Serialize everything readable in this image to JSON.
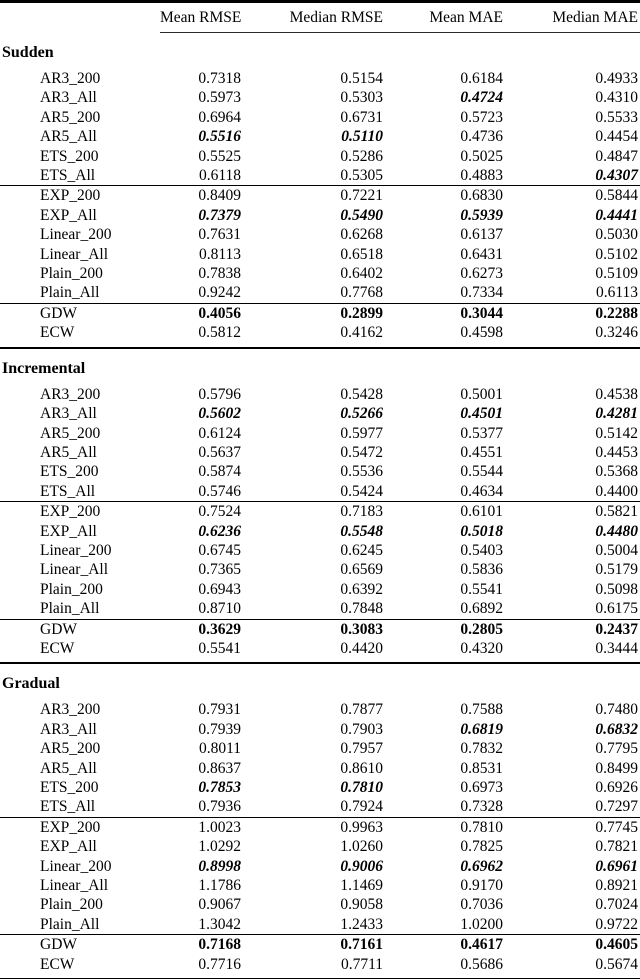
{
  "table": {
    "columns": [
      "Mean RMSE",
      "Median RMSE",
      "Mean MAE",
      "Median MAE"
    ],
    "emphasis_legend": {
      "b": "bold",
      "bi": "bold-italic",
      "": "normal"
    },
    "rule_color": "#000000",
    "sections": [
      {
        "title": "Sudden",
        "rows": [
          {
            "label": "AR3_200",
            "values": [
              "0.7318",
              "0.5154",
              "0.6184",
              "0.4933"
            ],
            "styles": [
              "",
              "",
              "",
              ""
            ]
          },
          {
            "label": "AR3_All",
            "values": [
              "0.5973",
              "0.5303",
              "0.4724",
              "0.4310"
            ],
            "styles": [
              "",
              "",
              "bi",
              ""
            ]
          },
          {
            "label": "AR5_200",
            "values": [
              "0.6964",
              "0.6731",
              "0.5723",
              "0.5533"
            ],
            "styles": [
              "",
              "",
              "",
              ""
            ]
          },
          {
            "label": "AR5_All",
            "values": [
              "0.5516",
              "0.5110",
              "0.4736",
              "0.4454"
            ],
            "styles": [
              "bi",
              "bi",
              "",
              ""
            ]
          },
          {
            "label": "ETS_200",
            "values": [
              "0.5525",
              "0.5286",
              "0.5025",
              "0.4847"
            ],
            "styles": [
              "",
              "",
              "",
              ""
            ]
          },
          {
            "label": "ETS_All",
            "values": [
              "0.6118",
              "0.5305",
              "0.4883",
              "0.4307"
            ],
            "styles": [
              "",
              "",
              "",
              "bi"
            ]
          },
          {
            "label": "EXP_200",
            "values": [
              "0.8409",
              "0.7221",
              "0.6830",
              "0.5844"
            ],
            "styles": [
              "",
              "",
              "",
              ""
            ]
          },
          {
            "label": "EXP_All",
            "values": [
              "0.7379",
              "0.5490",
              "0.5939",
              "0.4441"
            ],
            "styles": [
              "bi",
              "bi",
              "bi",
              "bi"
            ]
          },
          {
            "label": "Linear_200",
            "values": [
              "0.7631",
              "0.6268",
              "0.6137",
              "0.5030"
            ],
            "styles": [
              "",
              "",
              "",
              ""
            ]
          },
          {
            "label": "Linear_All",
            "values": [
              "0.8113",
              "0.6518",
              "0.6431",
              "0.5102"
            ],
            "styles": [
              "",
              "",
              "",
              ""
            ]
          },
          {
            "label": "Plain_200",
            "values": [
              "0.7838",
              "0.6402",
              "0.6273",
              "0.5109"
            ],
            "styles": [
              "",
              "",
              "",
              ""
            ]
          },
          {
            "label": "Plain_All",
            "values": [
              "0.9242",
              "0.7768",
              "0.7334",
              "0.6113"
            ],
            "styles": [
              "",
              "",
              "",
              ""
            ]
          },
          {
            "label": "GDW",
            "values": [
              "0.4056",
              "0.2899",
              "0.3044",
              "0.2288"
            ],
            "styles": [
              "b",
              "b",
              "b",
              "b"
            ]
          },
          {
            "label": "ECW",
            "values": [
              "0.5812",
              "0.4162",
              "0.4598",
              "0.3246"
            ],
            "styles": [
              "",
              "",
              "",
              ""
            ]
          }
        ]
      },
      {
        "title": "Incremental",
        "rows": [
          {
            "label": "AR3_200",
            "values": [
              "0.5796",
              "0.5428",
              "0.5001",
              "0.4538"
            ],
            "styles": [
              "",
              "",
              "",
              ""
            ]
          },
          {
            "label": "AR3_All",
            "values": [
              "0.5602",
              "0.5266",
              "0.4501",
              "0.4281"
            ],
            "styles": [
              "bi",
              "bi",
              "bi",
              "bi"
            ]
          },
          {
            "label": "AR5_200",
            "values": [
              "0.6124",
              "0.5977",
              "0.5377",
              "0.5142"
            ],
            "styles": [
              "",
              "",
              "",
              ""
            ]
          },
          {
            "label": "AR5_All",
            "values": [
              "0.5637",
              "0.5472",
              "0.4551",
              "0.4453"
            ],
            "styles": [
              "",
              "",
              "",
              ""
            ]
          },
          {
            "label": "ETS_200",
            "values": [
              "0.5874",
              "0.5536",
              "0.5544",
              "0.5368"
            ],
            "styles": [
              "",
              "",
              "",
              ""
            ]
          },
          {
            "label": "ETS_All",
            "values": [
              "0.5746",
              "0.5424",
              "0.4634",
              "0.4400"
            ],
            "styles": [
              "",
              "",
              "",
              ""
            ]
          },
          {
            "label": "EXP_200",
            "values": [
              "0.7524",
              "0.7183",
              "0.6101",
              "0.5821"
            ],
            "styles": [
              "",
              "",
              "",
              ""
            ]
          },
          {
            "label": "EXP_All",
            "values": [
              "0.6236",
              "0.5548",
              "0.5018",
              "0.4480"
            ],
            "styles": [
              "bi",
              "bi",
              "bi",
              "bi"
            ]
          },
          {
            "label": "Linear_200",
            "values": [
              "0.6745",
              "0.6245",
              "0.5403",
              "0.5004"
            ],
            "styles": [
              "",
              "",
              "",
              ""
            ]
          },
          {
            "label": "Linear_All",
            "values": [
              "0.7365",
              "0.6569",
              "0.5836",
              "0.5179"
            ],
            "styles": [
              "",
              "",
              "",
              ""
            ]
          },
          {
            "label": "Plain_200",
            "values": [
              "0.6943",
              "0.6392",
              "0.5541",
              "0.5098"
            ],
            "styles": [
              "",
              "",
              "",
              ""
            ]
          },
          {
            "label": "Plain_All",
            "values": [
              "0.8710",
              "0.7848",
              "0.6892",
              "0.6175"
            ],
            "styles": [
              "",
              "",
              "",
              ""
            ]
          },
          {
            "label": "GDW",
            "values": [
              "0.3629",
              "0.3083",
              "0.2805",
              "0.2437"
            ],
            "styles": [
              "b",
              "b",
              "b",
              "b"
            ]
          },
          {
            "label": "ECW",
            "values": [
              "0.5541",
              "0.4420",
              "0.4320",
              "0.3444"
            ],
            "styles": [
              "",
              "",
              "",
              ""
            ]
          }
        ]
      },
      {
        "title": "Gradual",
        "rows": [
          {
            "label": "AR3_200",
            "values": [
              "0.7931",
              "0.7877",
              "0.7588",
              "0.7480"
            ],
            "styles": [
              "",
              "",
              "",
              ""
            ]
          },
          {
            "label": "AR3_All",
            "values": [
              "0.7939",
              "0.7903",
              "0.6819",
              "0.6832"
            ],
            "styles": [
              "",
              "",
              "bi",
              "bi"
            ]
          },
          {
            "label": "AR5_200",
            "values": [
              "0.8011",
              "0.7957",
              "0.7832",
              "0.7795"
            ],
            "styles": [
              "",
              "",
              "",
              ""
            ]
          },
          {
            "label": "AR5_All",
            "values": [
              "0.8637",
              "0.8610",
              "0.8531",
              "0.8499"
            ],
            "styles": [
              "",
              "",
              "",
              ""
            ]
          },
          {
            "label": "ETS_200",
            "values": [
              "0.7853",
              "0.7810",
              "0.6973",
              "0.6926"
            ],
            "styles": [
              "bi",
              "bi",
              "",
              ""
            ]
          },
          {
            "label": "ETS_All",
            "values": [
              "0.7936",
              "0.7924",
              "0.7328",
              "0.7297"
            ],
            "styles": [
              "",
              "",
              "",
              ""
            ]
          },
          {
            "label": "EXP_200",
            "values": [
              "1.0023",
              "0.9963",
              "0.7810",
              "0.7745"
            ],
            "styles": [
              "",
              "",
              "",
              ""
            ]
          },
          {
            "label": "EXP_All",
            "values": [
              "1.0292",
              "1.0260",
              "0.7825",
              "0.7821"
            ],
            "styles": [
              "",
              "",
              "",
              ""
            ]
          },
          {
            "label": "Linear_200",
            "values": [
              "0.8998",
              "0.9006",
              "0.6962",
              "0.6961"
            ],
            "styles": [
              "bi",
              "bi",
              "bi",
              "bi"
            ]
          },
          {
            "label": "Linear_All",
            "values": [
              "1.1786",
              "1.1469",
              "0.9170",
              "0.8921"
            ],
            "styles": [
              "",
              "",
              "",
              ""
            ]
          },
          {
            "label": "Plain_200",
            "values": [
              "0.9067",
              "0.9058",
              "0.7036",
              "0.7024"
            ],
            "styles": [
              "",
              "",
              "",
              ""
            ]
          },
          {
            "label": "Plain_All",
            "values": [
              "1.3042",
              "1.2433",
              "1.0200",
              "0.9722"
            ],
            "styles": [
              "",
              "",
              "",
              ""
            ]
          },
          {
            "label": "GDW",
            "values": [
              "0.7168",
              "0.7161",
              "0.4617",
              "0.4605"
            ],
            "styles": [
              "b",
              "b",
              "b",
              "b"
            ]
          },
          {
            "label": "ECW",
            "values": [
              "0.7716",
              "0.7711",
              "0.5686",
              "0.5674"
            ],
            "styles": [
              "",
              "",
              "",
              ""
            ]
          }
        ]
      }
    ]
  }
}
